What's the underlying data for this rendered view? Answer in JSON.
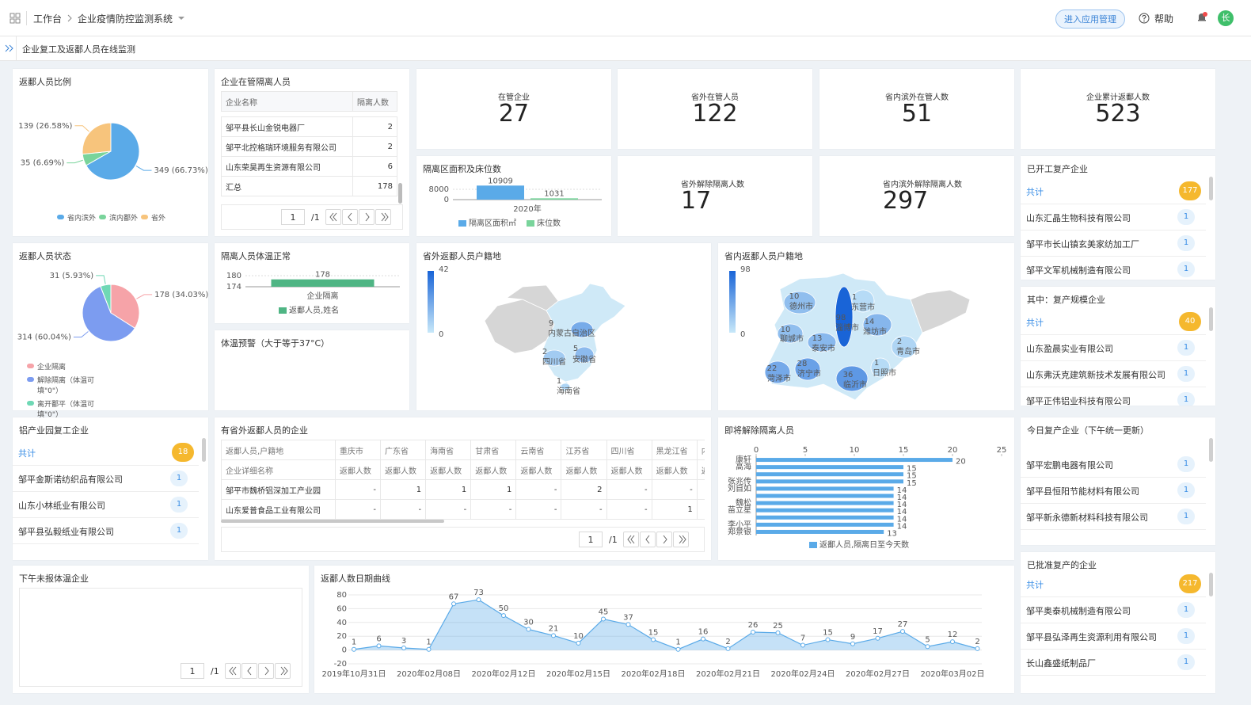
{
  "header": {
    "breadcrumb": [
      "工作台",
      "企业疫情防控监测系统"
    ],
    "manage_button": "进入应用管理",
    "help": "帮助",
    "avatar": "长"
  },
  "tab": "企业复工及返鄱人员在线监测",
  "stats": [
    {
      "label": "在管企业",
      "value": 27
    },
    {
      "label": "省外在管人员",
      "value": 122
    },
    {
      "label": "省内滨外在管人数",
      "value": 51
    },
    {
      "label": "企业累计返鄱人数",
      "value": 523
    },
    {
      "label": "省外解除隔离人数",
      "value": 17
    },
    {
      "label": "省内滨外解除隔离人数",
      "value": 297
    }
  ],
  "isolation_table": {
    "title": "企业在管隔离人员",
    "columns": [
      "企业名称",
      "隔离人数"
    ],
    "rows": [
      [
        "邹平县长山金锐电器厂",
        2
      ],
      [
        "邹平北控格瑞环境服务有限公司",
        2
      ],
      [
        "山东荣昊再生资源有限公司",
        6
      ],
      [
        "汇总",
        178
      ]
    ],
    "page": 1,
    "page_count": "/1"
  },
  "province_table": {
    "title": "有省外返鄱人员的企业",
    "header_1": [
      "返鄱人员,户籍地",
      "重庆市",
      "广东省",
      "海南省",
      "甘肃省",
      "云南省",
      "江苏省",
      "四川省",
      "黑龙江省",
      "内蒙古自治"
    ],
    "header_2": [
      "企业详细名称",
      "返鄱人数",
      "返鄱人数",
      "返鄱人数",
      "返鄱人数",
      "返鄱人数",
      "返鄱人数",
      "返鄱人数",
      "返鄱人数",
      "返鄱人数"
    ],
    "rows": [
      [
        "邹平市魏桥铝深加工产业园",
        "-",
        1,
        1,
        1,
        "-",
        2,
        "-",
        "-"
      ],
      [
        "山东爱普食品工业有限公司",
        "-",
        "-",
        "-",
        "-",
        "-",
        "-",
        "-",
        1
      ]
    ],
    "page": 1,
    "page_count": "/1"
  },
  "temp_warning": {
    "title": "体温预警（大于等于37°C）"
  },
  "no_temp_report": {
    "title": "下午未报体温企业",
    "page": 1,
    "page_count": "/1"
  },
  "lists": [
    {
      "title": "已开工复产企业",
      "total_label": "共计",
      "total": 177,
      "items": [
        {
          "name": "山东汇晶生物科技有限公司",
          "count": 1
        },
        {
          "name": "邹平市长山镇玄美家纺加工厂",
          "count": 1
        },
        {
          "name": "邹平文军机械制造有限公司",
          "count": 1
        }
      ]
    },
    {
      "title": "其中：复产规模企业",
      "total_label": "共计",
      "total": 40,
      "items": [
        {
          "name": "山东盈晨实业有限公司",
          "count": 1
        },
        {
          "name": "山东弗沃克建筑新技术发展有限公司",
          "count": 1
        },
        {
          "name": "邹平正伟铝业科技有限公司",
          "count": 1
        }
      ]
    },
    {
      "title": "今日复产企业（下午统一更新）",
      "items": [
        {
          "name": "邹平宏鹏电器有限公司",
          "count": 1
        },
        {
          "name": "邹平县恒阳节能材料有限公司",
          "count": 1
        },
        {
          "name": "邹平新永德新材料科技有限公司",
          "count": 1
        }
      ]
    },
    {
      "title": "已批准复产的企业",
      "total_label": "共计",
      "total": 217,
      "items": [
        {
          "name": "邹平奥泰机械制造有限公司",
          "count": 1
        },
        {
          "name": "邹平县弘泽再生资源利用有限公司",
          "count": 1
        },
        {
          "name": "长山鑫盛纸制品厂",
          "count": 1
        }
      ]
    },
    {
      "title": "铝产业园复工企业",
      "total_label": "共计",
      "total": 18,
      "items": [
        {
          "name": "邹平金斯诺纺织品有限公司",
          "count": 1
        },
        {
          "name": "山东小林纸业有限公司",
          "count": 1
        },
        {
          "name": "邹平县弘毅纸业有限公司",
          "count": 1
        }
      ]
    }
  ],
  "charts": {
    "return_ratio": {
      "type": "pie",
      "title": "返鄱人员比例",
      "categories": [
        "省内滨外",
        "滨内鄱外",
        "省外"
      ],
      "values": [
        349,
        35,
        139
      ],
      "value_labels": [
        "349 (66.73%)",
        "35 (6.69%)",
        "139 (26.58%)"
      ],
      "colors": [
        "#5aaae8",
        "#79d49b",
        "#f7c47c"
      ]
    },
    "return_status": {
      "type": "pie",
      "title": "返鄱人员状态",
      "categories": [
        "企业隔离",
        "解除隔离（体温可填\"0\"）",
        "离开鄱平（体温可填\"0\"）"
      ],
      "values": [
        178,
        314,
        31
      ],
      "value_labels": [
        "178 (34.03%)",
        "314 (60.04%)",
        "31 (5.93%)"
      ],
      "colors": [
        "#f6a3a8",
        "#7c9cf0",
        "#6fd8b5"
      ]
    },
    "area_beds": {
      "type": "bar",
      "title": "隔离区面积及床位数",
      "categories": [
        "2020年"
      ],
      "series": [
        {
          "name": "隔离区面积㎡",
          "color": "#5aaae8",
          "values": [
            10909
          ]
        },
        {
          "name": "床位数",
          "color": "#79d49b",
          "values": [
            1031
          ]
        }
      ],
      "ylim": [
        0,
        12000
      ],
      "yticks": [
        0,
        8000
      ],
      "grid": true
    },
    "temp_normal": {
      "type": "bar",
      "title": "隔离人员体温正常",
      "categories": [
        "企业隔离"
      ],
      "series": [
        {
          "name": "返鄱人员,姓名",
          "color": "#4fb584",
          "values": [
            178
          ]
        }
      ],
      "ylim": [
        174,
        180
      ],
      "yticks": [
        174,
        180
      ],
      "grid": true
    },
    "release_soon": {
      "type": "bar",
      "horizontal": true,
      "title": "即将解除隔离人员",
      "categories": [
        "康轩",
        "高海",
        null,
        "张兆传",
        "刘自如",
        null,
        "魏松",
        "苗立星",
        null,
        "李小平",
        "郑景银"
      ],
      "series": [
        {
          "name": "返鄱人员,隔离日至今天数",
          "color": "#5aaae8",
          "values": [
            20,
            15,
            15,
            15,
            14,
            14,
            14,
            14,
            14,
            14,
            13
          ]
        }
      ],
      "xlim": [
        0,
        25
      ],
      "xticks": [
        0,
        5,
        10,
        15,
        20,
        25
      ],
      "grid": false
    },
    "daily_returns": {
      "type": "line",
      "title": "返鄱人数日期曲线",
      "categories": [
        "2019年10月31日",
        null,
        null,
        "2020年02月08日",
        null,
        null,
        "2020年02月12日",
        null,
        null,
        "2020年02月15日",
        null,
        null,
        "2020年02月18日",
        null,
        null,
        "2020年02月21日",
        null,
        null,
        "2020年02月24日",
        null,
        null,
        "2020年02月27日",
        null,
        null,
        "2020年03月02日",
        null
      ],
      "values": [
        1,
        6,
        3,
        1,
        67,
        73,
        50,
        30,
        21,
        10,
        45,
        37,
        15,
        1,
        16,
        2,
        26,
        25,
        7,
        15,
        9,
        17,
        27,
        5,
        12,
        2
      ],
      "color": "#5aaae8",
      "area": true,
      "ylim": [
        -20,
        80
      ],
      "yticks": [
        -20,
        0,
        20,
        40,
        60,
        80
      ],
      "grid": true
    },
    "map_out": {
      "type": "map",
      "title": "省外返鄱人员户籍地",
      "visual_range": [
        0,
        42
      ],
      "regions": [
        {
          "name": "内蒙古自治区",
          "value": 9
        },
        {
          "name": "四川省",
          "value": 2
        },
        {
          "name": "安徽省",
          "value": 5
        },
        {
          "name": "海南省",
          "value": 1
        }
      ]
    },
    "map_in": {
      "type": "map",
      "title": "省内返鄱人员户籍地",
      "visual_range": [
        0,
        98
      ],
      "regions": [
        {
          "name": "德州市",
          "value": 10
        },
        {
          "name": "东营市",
          "value": 1
        },
        {
          "name": "淄博市",
          "value": 98
        },
        {
          "name": "潍坊市",
          "value": 14
        },
        {
          "name": "聊城市",
          "value": 10
        },
        {
          "name": "泰安市",
          "value": 13
        },
        {
          "name": "青岛市",
          "value": 2
        },
        {
          "name": "菏泽市",
          "value": 22
        },
        {
          "name": "济宁市",
          "value": 28
        },
        {
          "name": "临沂市",
          "value": 36
        },
        {
          "name": "日照市",
          "value": 1
        }
      ]
    }
  }
}
